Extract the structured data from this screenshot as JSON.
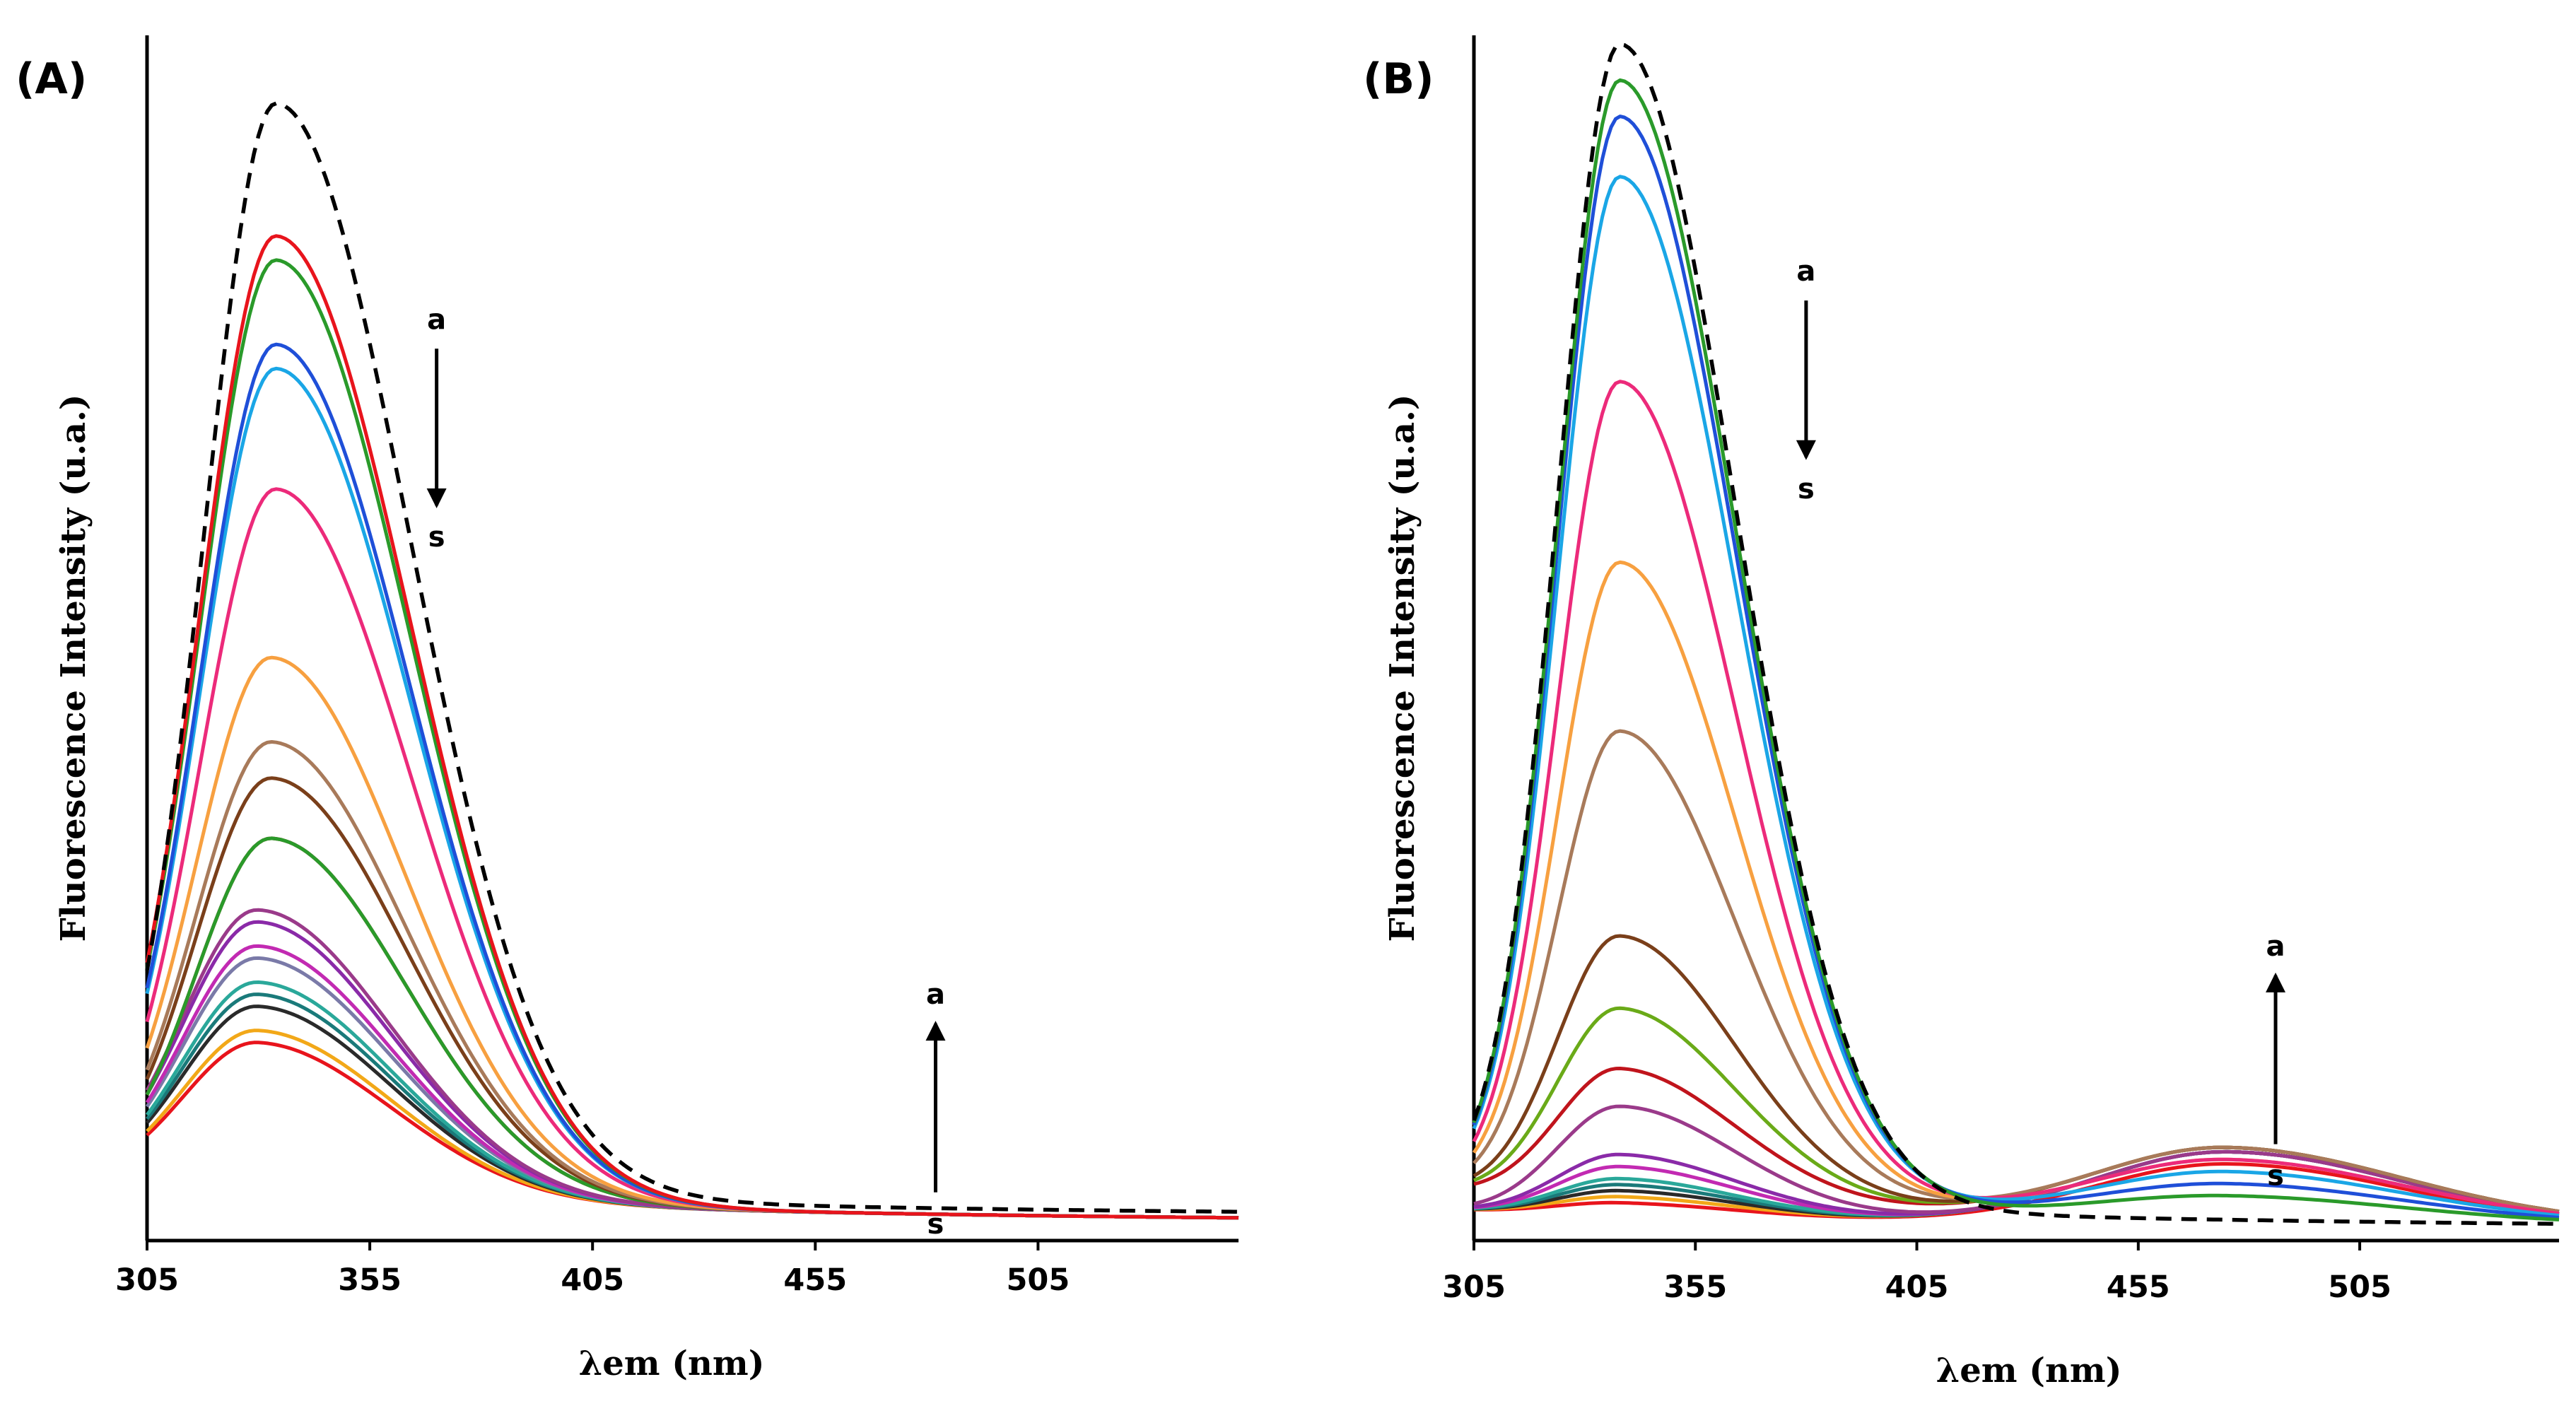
{
  "chart_data": [
    {
      "type": "line",
      "panel_label": "(A)",
      "xlabel": "λem (nm)",
      "ylabel": "Fluorescence  Intensity  (u.a.)",
      "x_ticks": [
        305,
        355,
        405,
        455,
        505
      ],
      "xlim": [
        305,
        550
      ],
      "ylim": [
        0,
        1
      ],
      "y_tick_labels": false,
      "grid": false,
      "legend": "none",
      "dashed_reference": {
        "color": "#000000",
        "peak_x": 334,
        "peak": 0.92,
        "sigma_left": 16,
        "sigma_right": 30,
        "base": 0.02
      },
      "series": [
        {
          "color": "#e8141c",
          "peak_x": 334,
          "peak": 0.81
        },
        {
          "color": "#2a9a2a",
          "peak_x": 334,
          "peak": 0.79
        },
        {
          "color": "#1f4fd8",
          "peak_x": 334,
          "peak": 0.72
        },
        {
          "color": "#1aa6e6",
          "peak_x": 334,
          "peak": 0.7
        },
        {
          "color": "#ec2a7a",
          "peak_x": 334,
          "peak": 0.6
        },
        {
          "color": "#f7a040",
          "peak_x": 333,
          "peak": 0.46
        },
        {
          "color": "#a87a5a",
          "peak_x": 333,
          "peak": 0.39
        },
        {
          "color": "#7a3f1a",
          "peak_x": 333,
          "peak": 0.36
        },
        {
          "color": "#2a9a2a",
          "peak_x": 333,
          "peak": 0.31
        },
        {
          "color": "#c0141c",
          "peak_x": 333,
          "peak": 0.31
        },
        {
          "color": "#9a3a8a",
          "peak_x": 330,
          "peak": 0.25
        },
        {
          "color": "#8a2aa8",
          "peak_x": 330,
          "peak": 0.24
        },
        {
          "color": "#c22ab2",
          "peak_x": 330,
          "peak": 0.22
        },
        {
          "color": "#7a7aa8",
          "peak_x": 330,
          "peak": 0.21
        },
        {
          "color": "#2aa89a",
          "peak_x": 330,
          "peak": 0.19
        },
        {
          "color": "#1a7a7a",
          "peak_x": 330,
          "peak": 0.18
        },
        {
          "color": "#2a2a2a",
          "peak_x": 330,
          "peak": 0.17
        },
        {
          "color": "#f2a818",
          "peak_x": 330,
          "peak": 0.15
        },
        {
          "color": "#e8141c",
          "peak_x": 330,
          "peak": 0.14
        }
      ],
      "arrows": [
        {
          "direction": "down",
          "top_label": "a",
          "bottom_label": "s",
          "x": 370,
          "y_top": 0.74,
          "y_bottom": 0.61
        },
        {
          "direction": "up",
          "top_label": "a",
          "bottom_label": "s",
          "x": 482,
          "y_top": 0.18,
          "y_bottom": 0.04
        }
      ]
    },
    {
      "type": "line",
      "panel_label": "(B)",
      "xlabel": "λem (nm)",
      "ylabel": "Fluorescence  Intensity  (u.a.)",
      "x_ticks": [
        305,
        355,
        405,
        455,
        505
      ],
      "xlim": [
        305,
        550
      ],
      "ylim": [
        0,
        1
      ],
      "y_tick_labels": false,
      "grid": false,
      "legend": "none",
      "dashed_reference": {
        "color": "#000000",
        "peak_x": 338,
        "peak": 0.97,
        "sigma_left": 14,
        "sigma_right": 26,
        "base": 0.01
      },
      "series": [
        {
          "color": "#2a9a2a",
          "peak_x": 338,
          "peak": 0.94,
          "peak2": 0.02
        },
        {
          "color": "#1f4fd8",
          "peak_x": 338,
          "peak": 0.91,
          "peak2": 0.03
        },
        {
          "color": "#1aa6e6",
          "peak_x": 338,
          "peak": 0.86,
          "peak2": 0.04
        },
        {
          "color": "#ec2a7a",
          "peak_x": 338,
          "peak": 0.69,
          "peak2": 0.05
        },
        {
          "color": "#f7a040",
          "peak_x": 338,
          "peak": 0.54,
          "peak2": 0.05
        },
        {
          "color": "#a87a5a",
          "peak_x": 338,
          "peak": 0.4,
          "peak2": 0.06
        },
        {
          "color": "#7a3f1a",
          "peak_x": 338,
          "peak": 0.23,
          "peak2": 0.06
        },
        {
          "color": "#6aaa18",
          "peak_x": 338,
          "peak": 0.17,
          "peak2": 0.06
        },
        {
          "color": "#c0141c",
          "peak_x": 338,
          "peak": 0.12,
          "peak2": 0.06
        },
        {
          "color": "#9a3a8a",
          "peak_x": 338,
          "peak": 0.1,
          "peak2": 0.06
        },
        {
          "color": "#8a2aa8",
          "peak_x": 338,
          "peak": 0.06,
          "peak2": 0.06
        },
        {
          "color": "#c22ab2",
          "peak_x": 338,
          "peak": 0.05,
          "peak2": 0.06
        },
        {
          "color": "#2aa89a",
          "peak_x": 338,
          "peak": 0.04,
          "peak2": 0.06
        },
        {
          "color": "#1a7a7a",
          "peak_x": 338,
          "peak": 0.035,
          "peak2": 0.06
        },
        {
          "color": "#2a2a2a",
          "peak_x": 338,
          "peak": 0.03,
          "peak2": 0.06
        },
        {
          "color": "#f2a818",
          "peak_x": 338,
          "peak": 0.025,
          "peak2": 0.06
        },
        {
          "color": "#e8141c",
          "peak_x": 338,
          "peak": 0.02,
          "peak2": 0.05
        }
      ],
      "second_peak_x": 475,
      "arrows": [
        {
          "direction": "down",
          "top_label": "a",
          "bottom_label": "s",
          "x": 380,
          "y_top": 0.78,
          "y_bottom": 0.65
        },
        {
          "direction": "up",
          "top_label": "a",
          "bottom_label": "s",
          "x": 486,
          "y_top": 0.22,
          "y_bottom": 0.08
        }
      ]
    }
  ]
}
